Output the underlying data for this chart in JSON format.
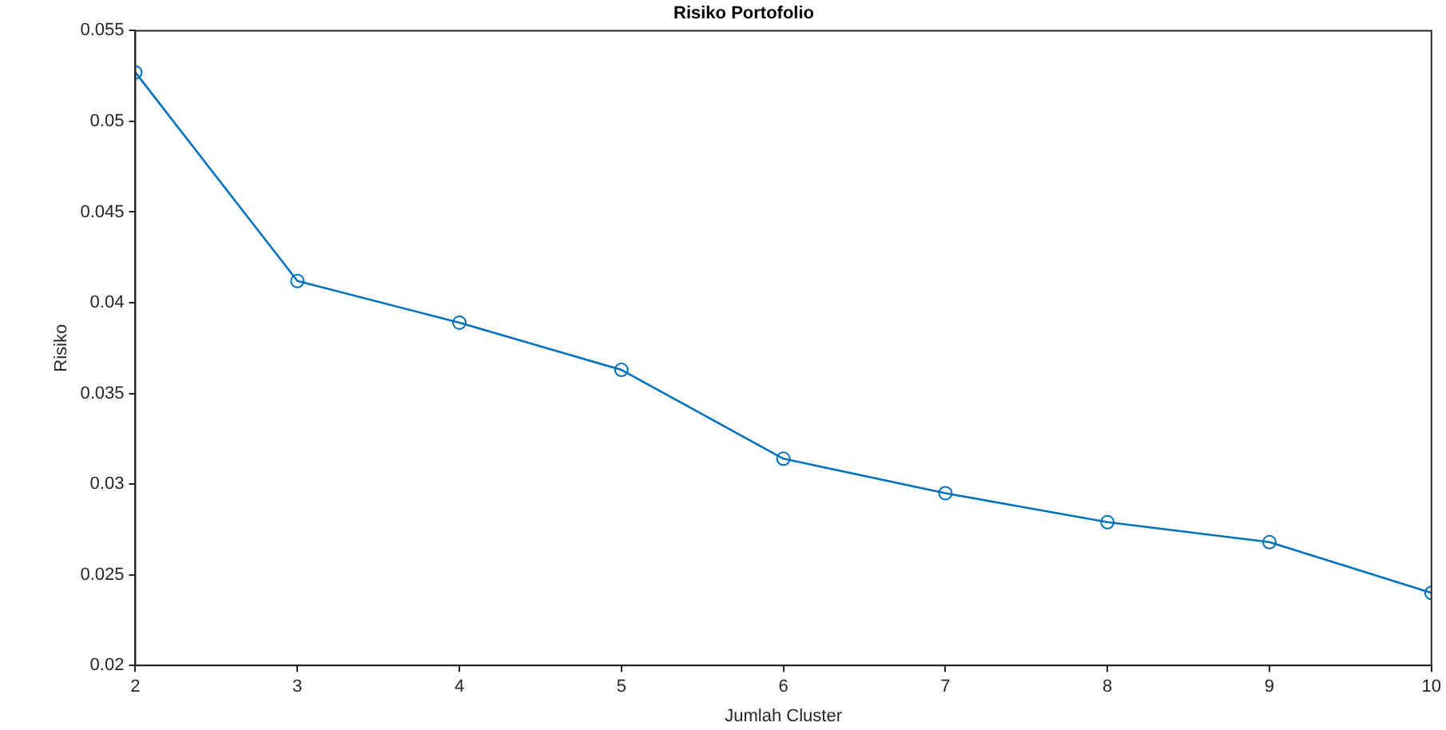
{
  "chart_data": {
    "type": "line",
    "title": "Risiko Portofolio",
    "xlabel": "Jumlah Cluster",
    "ylabel": "Risiko",
    "x": [
      2,
      3,
      4,
      5,
      6,
      7,
      8,
      9,
      10
    ],
    "series": [
      {
        "color": "#0072bd",
        "values": [
          0.0527,
          0.0412,
          0.0389,
          0.0363,
          0.0314,
          0.0295,
          0.0279,
          0.0268,
          0.024
        ]
      }
    ],
    "xlim": [
      2,
      10
    ],
    "xticks": [
      2,
      3,
      4,
      5,
      6,
      7,
      8,
      9,
      10
    ],
    "ylim": [
      0.02,
      0.055
    ],
    "yticks": [
      0.02,
      0.025,
      0.03,
      0.035,
      0.04,
      0.045,
      0.05,
      0.055
    ],
    "grid": false,
    "legend": false,
    "marker": "circle",
    "line_style": "solid"
  }
}
